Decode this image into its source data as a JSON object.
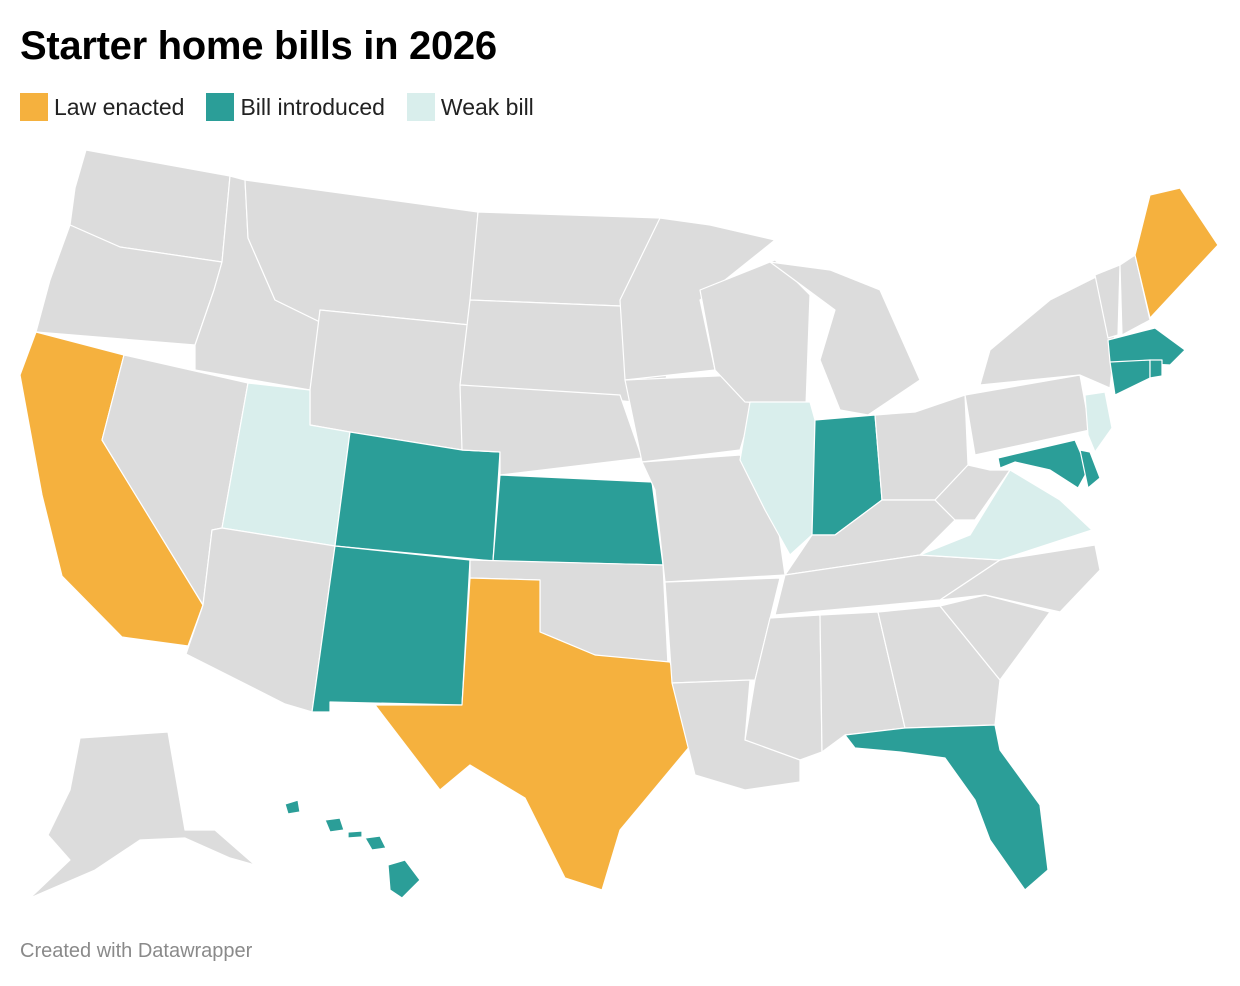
{
  "title": "Starter home bills in 2026",
  "legend": [
    {
      "label": "Law enacted",
      "color": "#f5b13e"
    },
    {
      "label": "Bill introduced",
      "color": "#2b9e98"
    },
    {
      "label": "Weak bill",
      "color": "#d9eeec"
    }
  ],
  "no_status_color": "#dcdcdc",
  "state_status": {
    "CA": "Law enacted",
    "TX": "Law enacted",
    "ME": "Law enacted",
    "CO": "Bill introduced",
    "NM": "Bill introduced",
    "KS": "Bill introduced",
    "IN": "Bill introduced",
    "FL": "Bill introduced",
    "HI": "Bill introduced",
    "MA": "Bill introduced",
    "CT": "Bill introduced",
    "RI": "Bill introduced",
    "MD": "Bill introduced",
    "DE": "Bill introduced",
    "UT": "Weak bill",
    "IL": "Weak bill",
    "VA": "Weak bill",
    "NJ": "Weak bill",
    "WA": "none",
    "OR": "none",
    "ID": "none",
    "MT": "none",
    "WY": "none",
    "NV": "none",
    "AZ": "none",
    "ND": "none",
    "SD": "none",
    "NE": "none",
    "OK": "none",
    "MN": "none",
    "IA": "none",
    "MO": "none",
    "AR": "none",
    "LA": "none",
    "WI": "none",
    "MI": "none",
    "OH": "none",
    "KY": "none",
    "TN": "none",
    "MS": "none",
    "AL": "none",
    "GA": "none",
    "SC": "none",
    "NC": "none",
    "WV": "none",
    "PA": "none",
    "NY": "none",
    "VT": "none",
    "NH": "none",
    "AK": "none"
  },
  "footer": "Created with Datawrapper"
}
